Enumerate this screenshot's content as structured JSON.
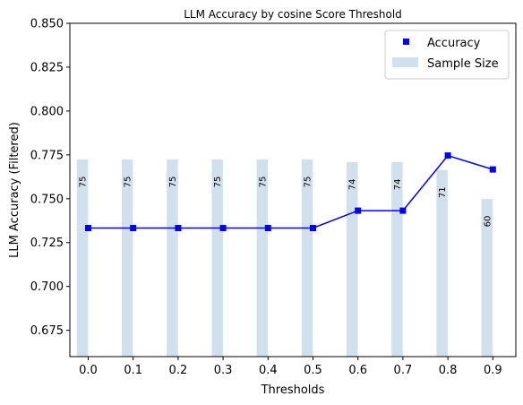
{
  "chart_data": {
    "type": "bar+line",
    "title": "LLM Accuracy by cosine Score Threshold",
    "xlabel": "Thresholds",
    "ylabel": "LLM Accuracy (Filtered)",
    "ylim": [
      0.66,
      0.85
    ],
    "yticks": [
      "0.675",
      "0.700",
      "0.725",
      "0.750",
      "0.775",
      "0.800",
      "0.825",
      "0.850"
    ],
    "ytick_values": [
      0.675,
      0.7,
      0.725,
      0.75,
      0.775,
      0.8,
      0.825,
      0.85
    ],
    "categories": [
      "0.0",
      "0.1",
      "0.2",
      "0.3",
      "0.4",
      "0.5",
      "0.6",
      "0.7",
      "0.8",
      "0.9"
    ],
    "grid": false,
    "legend_position": "upper right",
    "series": [
      {
        "name": "Accuracy",
        "kind": "line",
        "color": "#0000ff",
        "marker": "square",
        "values": [
          0.7333,
          0.7333,
          0.7333,
          0.7333,
          0.7333,
          0.7333,
          0.7432,
          0.7432,
          0.7746,
          0.7667
        ]
      },
      {
        "name": "Sample Size",
        "kind": "bar",
        "color": "#d0e1ed",
        "values": [
          75,
          75,
          75,
          75,
          75,
          75,
          74,
          74,
          71,
          60
        ],
        "labels": [
          "75",
          "75",
          "75",
          "75",
          "75",
          "75",
          "74",
          "74",
          "71",
          "60"
        ]
      }
    ]
  }
}
